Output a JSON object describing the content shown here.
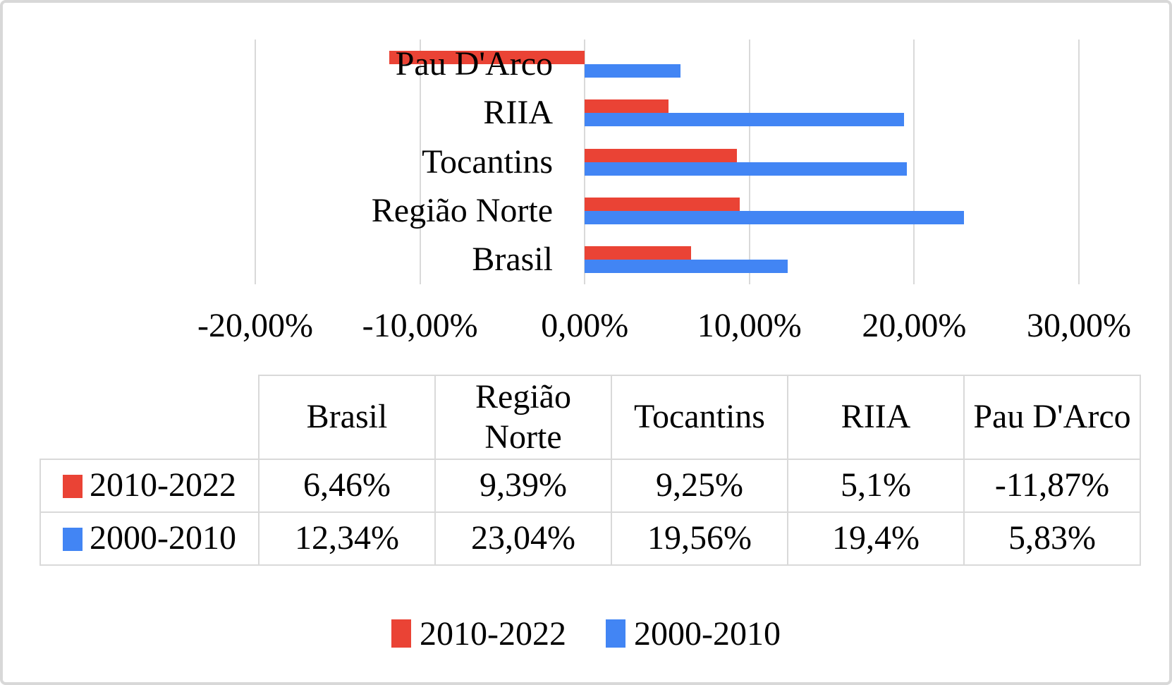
{
  "chart_data": {
    "type": "bar",
    "orientation": "horizontal-grouped",
    "title": "",
    "categories": [
      "Brasil",
      "Região Norte",
      "Tocantins",
      "RIIA",
      "Pau D'Arco"
    ],
    "plot_category_order_top_to_bottom": [
      "Pau D'Arco",
      "RIIA",
      "Tocantins",
      "Região Norte",
      "Brasil"
    ],
    "series": [
      {
        "name": "2010-2022",
        "color": "#EA4335",
        "values": [
          6.46,
          9.39,
          9.25,
          5.1,
          -11.87
        ],
        "value_labels": [
          "6,46%",
          "9,39%",
          "9,25%",
          "5,1%",
          "-11,87%"
        ]
      },
      {
        "name": "2000-2010",
        "color": "#4285F4",
        "values": [
          12.34,
          23.04,
          19.56,
          19.4,
          5.83
        ],
        "value_labels": [
          "12,34%",
          "23,04%",
          "19,56%",
          "19,4%",
          "5,83%"
        ]
      }
    ],
    "x_axis": {
      "min": -20,
      "max": 30,
      "tick_step": 10,
      "tick_labels": [
        "-20,00%",
        "-10,00%",
        "0,00%",
        "10,00%",
        "20,00%",
        "30,00%"
      ]
    },
    "grid": true,
    "gridline_color": "#d9d9d9",
    "legend_position": "bottom"
  },
  "table": {
    "column_headers": [
      "Brasil",
      "Região Norte",
      "Tocantins",
      "RIIA",
      "Pau D'Arco"
    ],
    "rows": [
      {
        "label": "2010-2022",
        "swatch_color": "#EA4335",
        "values": [
          "6,46%",
          "9,39%",
          "9,25%",
          "5,1%",
          "-11,87%"
        ]
      },
      {
        "label": "2000-2010",
        "swatch_color": "#4285F4",
        "values": [
          "12,34%",
          "23,04%",
          "19,56%",
          "19,4%",
          "5,83%"
        ]
      }
    ]
  },
  "legend": {
    "items": [
      {
        "label": "2010-2022",
        "color": "#EA4335"
      },
      {
        "label": "2000-2010",
        "color": "#4285F4"
      }
    ]
  }
}
